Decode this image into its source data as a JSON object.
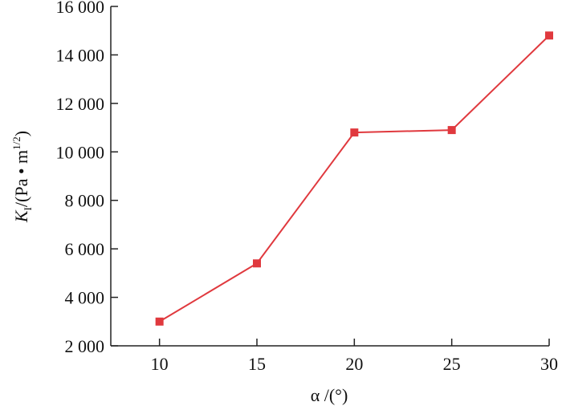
{
  "chart_data": {
    "type": "line",
    "x_label": "α /(°)",
    "y_label": [
      "K",
      "I",
      "/(Pa • m",
      "1/2",
      ")"
    ],
    "x": [
      10,
      15,
      20,
      25,
      30
    ],
    "series": [
      {
        "color": "#e0393e",
        "values": [
          3000,
          5400,
          10800,
          10900,
          14800
        ]
      }
    ],
    "xlim": [
      7.5,
      30
    ],
    "xticks": [
      10,
      15,
      20,
      25,
      30
    ],
    "ylim": [
      2000,
      16000
    ],
    "yticks": [
      {
        "value": 2000,
        "label": "2 000"
      },
      {
        "value": 4000,
        "label": "4 000"
      },
      {
        "value": 6000,
        "label": "6 000"
      },
      {
        "value": 8000,
        "label": "8 000"
      },
      {
        "value": 10000,
        "label": "10 000"
      },
      {
        "value": 12000,
        "label": "12 000"
      },
      {
        "value": 14000,
        "label": "14 000"
      },
      {
        "value": 16000,
        "label": "16 000"
      }
    ]
  }
}
